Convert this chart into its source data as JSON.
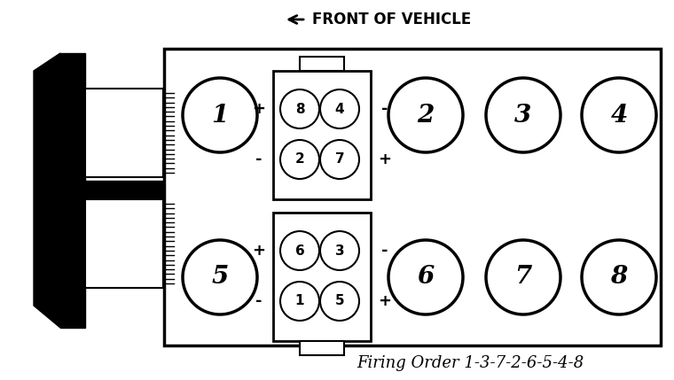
{
  "title": "Firing Order 1-3-7-2-6-5-4-8",
  "front_label": "FRONT OF VEHICLE",
  "background_color": "#ffffff",
  "fig_width": 7.6,
  "fig_height": 4.29,
  "dpi": 100
}
